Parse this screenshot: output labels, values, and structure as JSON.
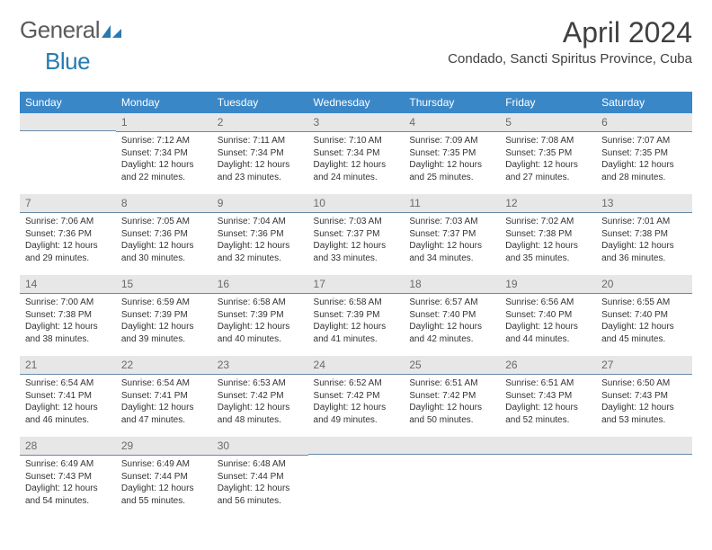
{
  "brand": {
    "text_general": "General",
    "text_blue": "Blue",
    "logo_color": "#2a7ab0",
    "text_gray": "#5b5b5b"
  },
  "title": "April 2024",
  "location": "Condado, Sancti Spiritus Province, Cuba",
  "colors": {
    "header_bg": "#3a87c8",
    "header_text": "#ffffff",
    "daynum_bg": "#e7e7e7",
    "daynum_text": "#6a6a6a",
    "daynum_border": "#6a8aa8",
    "body_text": "#333333",
    "title_text": "#404040"
  },
  "fonts": {
    "title_size": 32,
    "location_size": 15,
    "header_size": 12,
    "daynum_size": 12,
    "body_size": 10
  },
  "weekdays": [
    "Sunday",
    "Monday",
    "Tuesday",
    "Wednesday",
    "Thursday",
    "Friday",
    "Saturday"
  ],
  "weeks": [
    [
      null,
      {
        "n": "1",
        "sr": "7:12 AM",
        "ss": "7:34 PM",
        "dl": "12 hours and 22 minutes."
      },
      {
        "n": "2",
        "sr": "7:11 AM",
        "ss": "7:34 PM",
        "dl": "12 hours and 23 minutes."
      },
      {
        "n": "3",
        "sr": "7:10 AM",
        "ss": "7:34 PM",
        "dl": "12 hours and 24 minutes."
      },
      {
        "n": "4",
        "sr": "7:09 AM",
        "ss": "7:35 PM",
        "dl": "12 hours and 25 minutes."
      },
      {
        "n": "5",
        "sr": "7:08 AM",
        "ss": "7:35 PM",
        "dl": "12 hours and 27 minutes."
      },
      {
        "n": "6",
        "sr": "7:07 AM",
        "ss": "7:35 PM",
        "dl": "12 hours and 28 minutes."
      }
    ],
    [
      {
        "n": "7",
        "sr": "7:06 AM",
        "ss": "7:36 PM",
        "dl": "12 hours and 29 minutes."
      },
      {
        "n": "8",
        "sr": "7:05 AM",
        "ss": "7:36 PM",
        "dl": "12 hours and 30 minutes."
      },
      {
        "n": "9",
        "sr": "7:04 AM",
        "ss": "7:36 PM",
        "dl": "12 hours and 32 minutes."
      },
      {
        "n": "10",
        "sr": "7:03 AM",
        "ss": "7:37 PM",
        "dl": "12 hours and 33 minutes."
      },
      {
        "n": "11",
        "sr": "7:03 AM",
        "ss": "7:37 PM",
        "dl": "12 hours and 34 minutes."
      },
      {
        "n": "12",
        "sr": "7:02 AM",
        "ss": "7:38 PM",
        "dl": "12 hours and 35 minutes."
      },
      {
        "n": "13",
        "sr": "7:01 AM",
        "ss": "7:38 PM",
        "dl": "12 hours and 36 minutes."
      }
    ],
    [
      {
        "n": "14",
        "sr": "7:00 AM",
        "ss": "7:38 PM",
        "dl": "12 hours and 38 minutes."
      },
      {
        "n": "15",
        "sr": "6:59 AM",
        "ss": "7:39 PM",
        "dl": "12 hours and 39 minutes."
      },
      {
        "n": "16",
        "sr": "6:58 AM",
        "ss": "7:39 PM",
        "dl": "12 hours and 40 minutes."
      },
      {
        "n": "17",
        "sr": "6:58 AM",
        "ss": "7:39 PM",
        "dl": "12 hours and 41 minutes."
      },
      {
        "n": "18",
        "sr": "6:57 AM",
        "ss": "7:40 PM",
        "dl": "12 hours and 42 minutes."
      },
      {
        "n": "19",
        "sr": "6:56 AM",
        "ss": "7:40 PM",
        "dl": "12 hours and 44 minutes."
      },
      {
        "n": "20",
        "sr": "6:55 AM",
        "ss": "7:40 PM",
        "dl": "12 hours and 45 minutes."
      }
    ],
    [
      {
        "n": "21",
        "sr": "6:54 AM",
        "ss": "7:41 PM",
        "dl": "12 hours and 46 minutes."
      },
      {
        "n": "22",
        "sr": "6:54 AM",
        "ss": "7:41 PM",
        "dl": "12 hours and 47 minutes."
      },
      {
        "n": "23",
        "sr": "6:53 AM",
        "ss": "7:42 PM",
        "dl": "12 hours and 48 minutes."
      },
      {
        "n": "24",
        "sr": "6:52 AM",
        "ss": "7:42 PM",
        "dl": "12 hours and 49 minutes."
      },
      {
        "n": "25",
        "sr": "6:51 AM",
        "ss": "7:42 PM",
        "dl": "12 hours and 50 minutes."
      },
      {
        "n": "26",
        "sr": "6:51 AM",
        "ss": "7:43 PM",
        "dl": "12 hours and 52 minutes."
      },
      {
        "n": "27",
        "sr": "6:50 AM",
        "ss": "7:43 PM",
        "dl": "12 hours and 53 minutes."
      }
    ],
    [
      {
        "n": "28",
        "sr": "6:49 AM",
        "ss": "7:43 PM",
        "dl": "12 hours and 54 minutes."
      },
      {
        "n": "29",
        "sr": "6:49 AM",
        "ss": "7:44 PM",
        "dl": "12 hours and 55 minutes."
      },
      {
        "n": "30",
        "sr": "6:48 AM",
        "ss": "7:44 PM",
        "dl": "12 hours and 56 minutes."
      },
      null,
      null,
      null,
      null
    ]
  ],
  "labels": {
    "sunrise": "Sunrise:",
    "sunset": "Sunset:",
    "daylight": "Daylight:"
  }
}
